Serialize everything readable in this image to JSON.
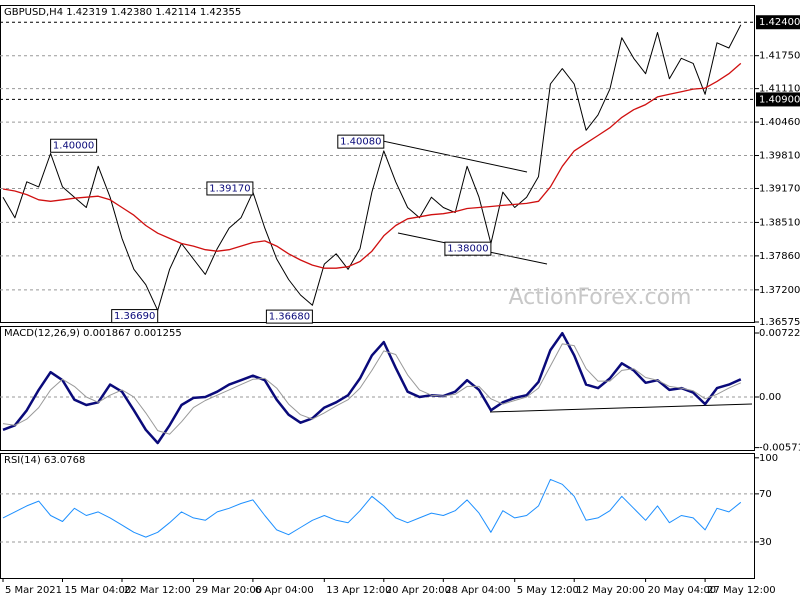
{
  "chart_data": [
    {
      "type": "line",
      "title": "GBPUSD,H4 1.42319 1.42380 1.42114 1.42355",
      "watermark": "ActionForex.com",
      "ylim": [
        1.36575,
        1.42735
      ],
      "yticks": [
        {
          "value": 1.4175,
          "label": "1.41750"
        },
        {
          "value": 1.4111,
          "label": "1.41110"
        },
        {
          "value": 1.4046,
          "label": "1.40460"
        },
        {
          "value": 1.3981,
          "label": "1.39810"
        },
        {
          "value": 1.3917,
          "label": "1.39170"
        },
        {
          "value": 1.3851,
          "label": "1.38510"
        },
        {
          "value": 1.3786,
          "label": "1.37860"
        },
        {
          "value": 1.372,
          "label": "1.37200"
        },
        {
          "value": 1.36575,
          "label": "1.36575"
        }
      ],
      "hlines": [
        {
          "value": 1.424,
          "label": "1.42400"
        },
        {
          "value": 1.409,
          "label": "1.40900"
        }
      ],
      "series": [
        {
          "color": "#000000",
          "values": [
            1.39,
            1.386,
            1.393,
            1.392,
            1.3985,
            1.392,
            1.39,
            1.388,
            1.396,
            1.39,
            1.382,
            1.376,
            1.373,
            1.368,
            1.376,
            1.381,
            1.378,
            1.375,
            1.38,
            1.384,
            1.386,
            1.391,
            1.384,
            1.378,
            1.374,
            1.371,
            1.369,
            1.377,
            1.379,
            1.376,
            1.38,
            1.391,
            1.399,
            1.393,
            1.388,
            1.386,
            1.39,
            1.388,
            1.387,
            1.396,
            1.39,
            1.381,
            1.391,
            1.388,
            1.39,
            1.394,
            1.412,
            1.415,
            1.412,
            1.403,
            1.406,
            1.411,
            1.421,
            1.417,
            1.414,
            1.422,
            1.413,
            1.417,
            1.416,
            1.41,
            1.42,
            1.419,
            1.4235
          ]
        },
        {
          "color": "#d01010",
          "values": [
            1.3916,
            1.3912,
            1.3905,
            1.3895,
            1.3892,
            1.3895,
            1.3898,
            1.39,
            1.3902,
            1.3895,
            1.388,
            1.3865,
            1.3845,
            1.383,
            1.382,
            1.381,
            1.3805,
            1.3798,
            1.3795,
            1.3798,
            1.3805,
            1.3812,
            1.3815,
            1.3805,
            1.379,
            1.3778,
            1.3768,
            1.3762,
            1.3762,
            1.3765,
            1.3775,
            1.3795,
            1.3825,
            1.3845,
            1.3858,
            1.3862,
            1.3866,
            1.3868,
            1.3872,
            1.3878,
            1.388,
            1.3882,
            1.3884,
            1.3886,
            1.3888,
            1.3892,
            1.392,
            1.396,
            1.399,
            1.4005,
            1.402,
            1.4035,
            1.4055,
            1.407,
            1.408,
            1.4095,
            1.41,
            1.4105,
            1.411,
            1.4112,
            1.4125,
            1.414,
            1.416
          ]
        }
      ],
      "annotations": [
        {
          "label": "1.40000",
          "value": 1.4,
          "x": 4
        },
        {
          "label": "1.39170",
          "value": 1.3917,
          "x": 21
        },
        {
          "label": "1.36690",
          "value": 1.3669,
          "x": 13
        },
        {
          "label": "1.36680",
          "value": 1.3668,
          "x": 26
        },
        {
          "label": "1.40080",
          "value": 1.4008,
          "x": 32
        },
        {
          "label": "1.38000",
          "value": 1.38,
          "x": 41
        }
      ]
    },
    {
      "type": "line",
      "title": "MACD(12,26,9) 0.001867 0.001255",
      "ylim": [
        -0.005985,
        0.008017
      ],
      "yticks": [
        0.007227,
        {
          "value": 0,
          "label": "0.00"
        },
        -0.005714
      ],
      "series": [
        {
          "color": "#0a0a7a",
          "values": [
            -0.0037,
            -0.0032,
            -0.0015,
            0.0008,
            0.0028,
            0.0019,
            -0.0003,
            -0.0009,
            -0.0006,
            0.0014,
            0.0006,
            -0.0015,
            -0.0037,
            -0.0052,
            -0.0032,
            -0.0009,
            -0.0001,
            0,
            0.0006,
            0.0014,
            0.0019,
            0.0024,
            0.0019,
            -0.0003,
            -0.002,
            -0.0029,
            -0.0024,
            -0.0012,
            -0.0006,
            0.0002,
            0.0021,
            0.0047,
            0.0062,
            0.0033,
            0.0006,
            0,
            0.0002,
            0.0001,
            0.0006,
            0.0019,
            0.0008,
            -0.0015,
            -0.0006,
            -0.0001,
            0.0002,
            0.0017,
            0.0053,
            0.0072,
            0.0047,
            0.0014,
            0.001,
            0.0021,
            0.0038,
            0.003,
            0.0016,
            0.0019,
            0.0008,
            0.001,
            0.0005,
            -0.0008,
            0.001,
            0.0014,
            0.002
          ]
        },
        {
          "color": "#999999",
          "values": [
            -0.003,
            -0.0032,
            -0.0025,
            -0.0012,
            0.0008,
            0.002,
            0.0012,
            0,
            -0.0006,
            0.0002,
            0.0008,
            0,
            -0.0018,
            -0.0038,
            -0.0042,
            -0.0028,
            -0.0012,
            -0.0004,
            0.0002,
            0.0008,
            0.0014,
            0.002,
            0.0021,
            0.001,
            -0.0008,
            -0.002,
            -0.0025,
            -0.0018,
            -0.001,
            -0.0003,
            0.001,
            0.003,
            0.0052,
            0.0048,
            0.0025,
            0.0008,
            0.0002,
            0.0001,
            0.0003,
            0.0012,
            0.0012,
            -0.0002,
            -0.0008,
            -0.0004,
            0,
            0.001,
            0.0035,
            0.006,
            0.0058,
            0.0032,
            0.0018,
            0.0018,
            0.003,
            0.0032,
            0.0022,
            0.0019,
            0.0012,
            0.001,
            0.0007,
            -0.0002,
            0.0003,
            0.001,
            0.0016
          ]
        }
      ]
    },
    {
      "type": "line",
      "title": "RSI(14) 63.0768",
      "ylim": [
        0,
        104
      ],
      "yticks": [
        100,
        70,
        30
      ],
      "categories": [
        "5 Mar 2021",
        null,
        null,
        null,
        null,
        "15 Mar 04:00",
        null,
        null,
        null,
        null,
        "22 Mar 12:00",
        null,
        null,
        null,
        null,
        null,
        "29 Mar 20:00",
        null,
        null,
        null,
        null,
        "6 Apr 04:00",
        null,
        null,
        null,
        null,
        null,
        "13 Apr 12:00",
        null,
        null,
        null,
        null,
        "20 Apr 20:00",
        null,
        null,
        null,
        null,
        "28 Apr 04:00",
        null,
        null,
        null,
        null,
        null,
        "5 May 12:00",
        null,
        null,
        null,
        null,
        "12 May 20:00",
        null,
        null,
        null,
        null,
        null,
        "20 May 04:00",
        null,
        null,
        null,
        null,
        "27 May 12:00",
        null,
        null,
        null
      ],
      "series": [
        {
          "color": "#1e90ff",
          "values": [
            50,
            55,
            60,
            64,
            52,
            47,
            58,
            52,
            55,
            50,
            44,
            38,
            34,
            38,
            46,
            55,
            50,
            48,
            55,
            58,
            62,
            65,
            52,
            40,
            36,
            42,
            48,
            52,
            48,
            46,
            56,
            68,
            60,
            50,
            46,
            50,
            54,
            52,
            56,
            65,
            54,
            38,
            56,
            50,
            52,
            60,
            82,
            78,
            68,
            48,
            50,
            56,
            68,
            58,
            48,
            60,
            46,
            52,
            50,
            40,
            58,
            55,
            63
          ]
        }
      ]
    }
  ]
}
